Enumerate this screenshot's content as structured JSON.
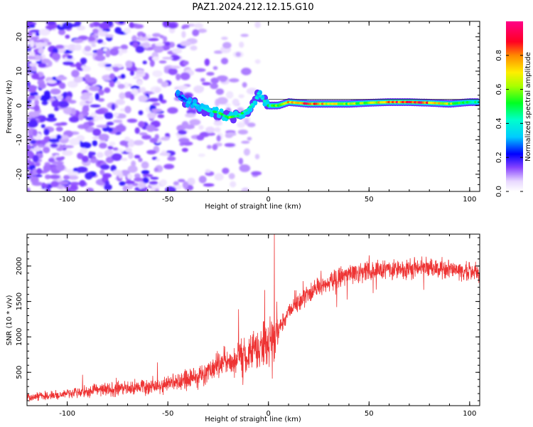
{
  "figure_title": "PAZ1.2024.212.12.15.G10",
  "chart_data": [
    {
      "type": "heatmap",
      "title": "PAZ1.2024.212.12.15.G10",
      "xlabel": "Height of straight line (km)",
      "ylabel": "Frequency (Hz)",
      "xlim": [
        -120,
        105
      ],
      "ylim": [
        -25,
        24.5
      ],
      "xticks": [
        -100,
        -50,
        0,
        50,
        100
      ],
      "yticks": [
        -20,
        -10,
        0,
        10,
        20
      ],
      "grid": false,
      "colorbar": {
        "label": "Normalized spectral amplitude",
        "range": [
          0.0,
          1.0
        ],
        "ticks": [
          0.0,
          0.2,
          0.4,
          0.6,
          0.8
        ],
        "colormap": "gist_ncar_r-like (white-violet-blue-cyan-green-yellow-orange-red-magenta)"
      },
      "ridge": {
        "description": "main spectral line vs height",
        "x": [
          -45,
          -40,
          -35,
          -30,
          -25,
          -20,
          -15,
          -10,
          -7,
          -5,
          -3,
          0,
          5,
          10,
          20,
          30,
          40,
          50,
          60,
          70,
          80,
          90,
          100,
          105
        ],
        "y": [
          3,
          1,
          0,
          -1.5,
          -2,
          -3.5,
          -3,
          -1,
          1,
          3.5,
          2,
          0,
          0,
          1,
          0.5,
          0.5,
          0.5,
          0.8,
          1,
          1,
          0.8,
          0.5,
          1,
          1
        ],
        "amplitude": [
          0.25,
          0.3,
          0.35,
          0.4,
          0.5,
          0.55,
          0.5,
          0.4,
          0.4,
          0.35,
          0.35,
          0.45,
          0.55,
          0.75,
          0.85,
          0.7,
          0.6,
          0.6,
          0.8,
          0.9,
          0.8,
          0.6,
          0.45,
          0.4
        ]
      },
      "noise_region": {
        "x_range": [
          -120,
          -40
        ],
        "y_range": [
          -25,
          24
        ],
        "amplitude_max": 0.3
      }
    },
    {
      "type": "line",
      "xlabel": "Height of straight line (km)",
      "ylabel": "SNR (10 * v/v)",
      "xlim": [
        -120,
        105
      ],
      "ylim": [
        30,
        2450
      ],
      "xticks": [
        -100,
        -50,
        0,
        50,
        100
      ],
      "yticks": [
        500,
        1000,
        1500,
        2000
      ],
      "grid": false,
      "color": "#ee3333",
      "trend": {
        "x": [
          -120,
          -110,
          -100,
          -90,
          -80,
          -70,
          -60,
          -50,
          -40,
          -30,
          -25,
          -20,
          -15,
          -10,
          -5,
          0,
          5,
          10,
          15,
          20,
          25,
          30,
          40,
          50,
          60,
          70,
          80,
          90,
          100,
          105
        ],
        "y": [
          150,
          170,
          200,
          230,
          260,
          280,
          300,
          330,
          400,
          500,
          600,
          650,
          700,
          750,
          850,
          900,
          1100,
          1350,
          1500,
          1600,
          1700,
          1760,
          1880,
          1920,
          1950,
          1960,
          1980,
          1960,
          1930,
          1900
        ]
      }
    }
  ]
}
